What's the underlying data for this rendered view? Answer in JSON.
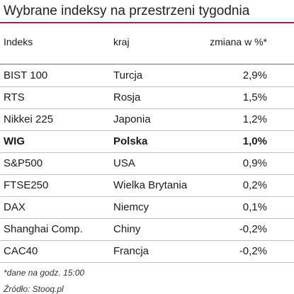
{
  "title": "Wybrane indeksy na przestrzeni tygodnia",
  "table": {
    "headers": [
      "Indeks",
      "kraj",
      "zmiana w %*"
    ],
    "rows": [
      {
        "index": "BIST 100",
        "country": "Turcja",
        "change": "2,9%"
      },
      {
        "index": "RTS",
        "country": "Rosja",
        "change": "1,5%"
      },
      {
        "index": "Nikkei 225",
        "country": "Japonia",
        "change": "1,2%"
      },
      {
        "index": "WIG",
        "country": "Polska",
        "change": "1,0%"
      },
      {
        "index": "S&P500",
        "country": "USA",
        "change": "0,9%"
      },
      {
        "index": "FTSE250",
        "country": "Wielka Brytania",
        "change": "0,2%"
      },
      {
        "index": "DAX",
        "country": "Niemcy",
        "change": "0,1%"
      },
      {
        "index": "Shanghai Comp.",
        "country": "Chiny",
        "change": "-0,2%"
      },
      {
        "index": "CAC40",
        "country": "Francja",
        "change": "-0,2%"
      }
    ]
  },
  "footnote": "*dane na godz. 15:00",
  "source": "Źródło: Stooq.pl",
  "colors": {
    "title_rule": "#7a2f5a"
  }
}
